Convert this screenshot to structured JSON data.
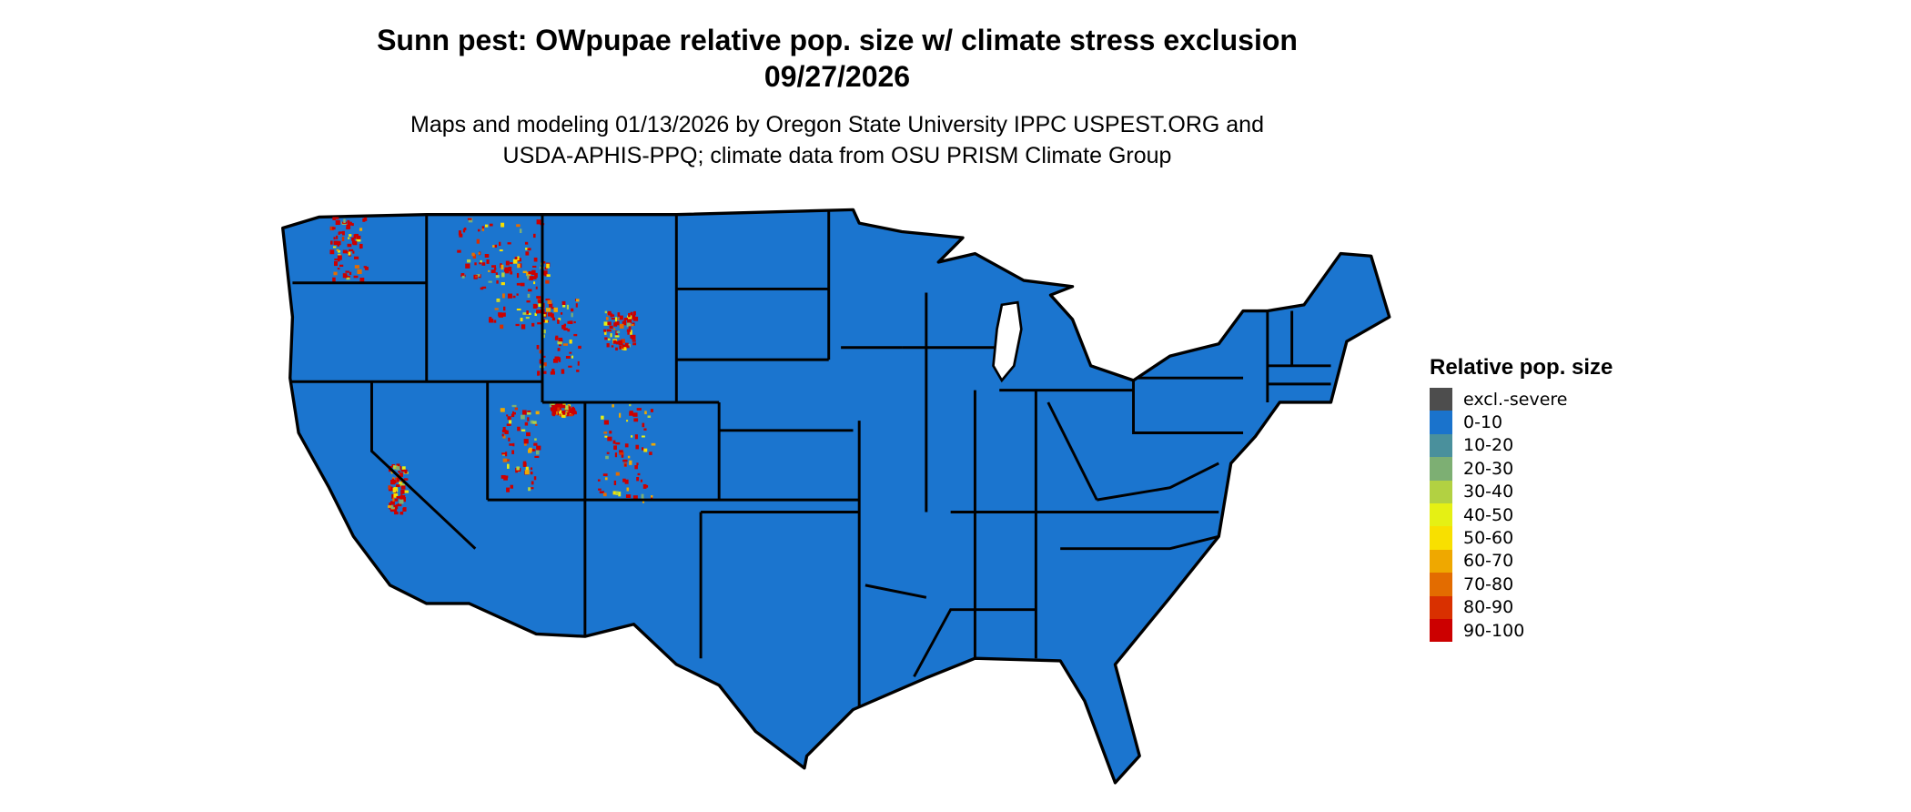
{
  "header": {
    "title": "Sunn pest: OWpupae relative pop. size w/ climate stress exclusion",
    "date": "09/27/2026",
    "subtitle_line1": "Maps and modeling 01/13/2026 by Oregon State University IPPC USPEST.ORG and",
    "subtitle_line2": "USDA-APHIS-PPQ; climate data from OSU PRISM Climate Group"
  },
  "map": {
    "region": "Conterminous United States",
    "base_fill": "#1b75cf",
    "border_color": "#000000"
  },
  "legend": {
    "title": "Relative pop. size",
    "items": [
      {
        "label": "excl.-severe",
        "color": "#4d4d4d"
      },
      {
        "label": "0-10",
        "color": "#1a73cc"
      },
      {
        "label": "10-20",
        "color": "#4a909c"
      },
      {
        "label": "20-30",
        "color": "#7daf73"
      },
      {
        "label": "30-40",
        "color": "#b2d142"
      },
      {
        "label": "40-50",
        "color": "#e5f014"
      },
      {
        "label": "50-60",
        "color": "#f8e000"
      },
      {
        "label": "60-70",
        "color": "#efa800"
      },
      {
        "label": "70-80",
        "color": "#e36c00"
      },
      {
        "label": "80-90",
        "color": "#d93000"
      },
      {
        "label": "90-100",
        "color": "#cc0000"
      }
    ]
  }
}
